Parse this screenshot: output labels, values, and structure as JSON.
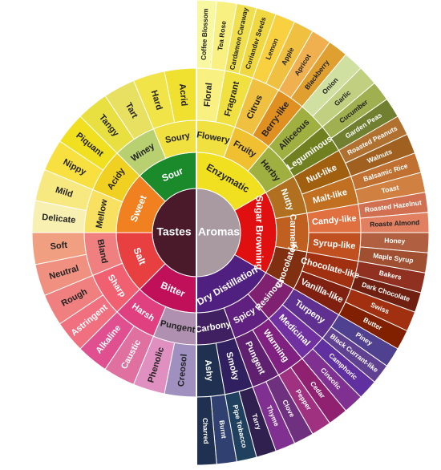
{
  "tastes": {
    "label": "Tastes",
    "color": "#4a1a2a",
    "children": [
      {
        "label": "Sour",
        "color": "#1a8a2a",
        "children": [
          {
            "label": "Soury",
            "color": "#f0e040",
            "children": [
              {
                "label": "Acrid",
                "color": "#f0e030"
              },
              {
                "label": "Hard",
                "color": "#f0e448"
              }
            ]
          },
          {
            "label": "Winey",
            "color": "#b8d070",
            "children": [
              {
                "label": "Tart",
                "color": "#e8e060"
              },
              {
                "label": "Tangy",
                "color": "#e8e040"
              }
            ]
          }
        ]
      },
      {
        "label": "Sweet",
        "color": "#f08020",
        "children": [
          {
            "label": "Acidy",
            "color": "#f0d020",
            "children": [
              {
                "label": "Piquant",
                "color": "#f0e020"
              },
              {
                "label": "Nippy",
                "color": "#f8e040"
              }
            ]
          },
          {
            "label": "Mellow",
            "color": "#f8e060",
            "children": [
              {
                "label": "Mild",
                "color": "#f8e880"
              },
              {
                "label": "Delicate",
                "color": "#f8f0b0"
              }
            ]
          }
        ]
      },
      {
        "label": "Salt",
        "color": "#e84040",
        "children": [
          {
            "label": "Bland",
            "color": "#f08080",
            "children": [
              {
                "label": "Soft",
                "color": "#f0a080"
              },
              {
                "label": "Neutral",
                "color": "#f09080"
              }
            ]
          },
          {
            "label": "Sharp",
            "color": "#f06070",
            "children": [
              {
                "label": "Rough",
                "color": "#f08080"
              },
              {
                "label": "Astringent",
                "color": "#f07080"
              }
            ]
          }
        ]
      },
      {
        "label": "Bitter",
        "color": "#c0105a",
        "children": [
          {
            "label": "Harsh",
            "color": "#e04080",
            "children": [
              {
                "label": "Alkaline",
                "color": "#e05090"
              },
              {
                "label": "Caustic",
                "color": "#e070a0"
              }
            ]
          },
          {
            "label": "Pungent",
            "color": "#b090b0",
            "children": [
              {
                "label": "Phenolic",
                "color": "#e090c0"
              },
              {
                "label": "Creosol",
                "color": "#a090c0"
              }
            ]
          }
        ]
      }
    ]
  },
  "aromas": {
    "label": "Aromas",
    "color": "#a89aa0",
    "children": [
      {
        "label": "Enzymatic",
        "color": "#f0e020",
        "children": [
          {
            "label": "Flowery",
            "color": "#f0e040",
            "children": [
              {
                "label": "Floral",
                "color": "#f8f080",
                "children": [
                  {
                    "label": "Coffee Blossom",
                    "color": "#f8f8a0"
                  },
                  {
                    "label": "Tea Rose",
                    "color": "#f8f080"
                  }
                ]
              },
              {
                "label": "Fragrant",
                "color": "#f0e040",
                "children": [
                  {
                    "label": "Cardamon Caraway",
                    "color": "#f0e050"
                  },
                  {
                    "label": "Coriander Seeds",
                    "color": "#f0d840"
                  }
                ]
              }
            ]
          },
          {
            "label": "Fruity",
            "color": "#f0c030",
            "children": [
              {
                "label": "Citrus",
                "color": "#f0c040",
                "children": [
                  {
                    "label": "Lemon",
                    "color": "#f8d040"
                  },
                  {
                    "label": "Apple",
                    "color": "#f0c040"
                  }
                ]
              },
              {
                "label": "Berry-like",
                "color": "#e09020",
                "children": [
                  {
                    "label": "Apricot",
                    "color": "#f0b050"
                  },
                  {
                    "label": "Blackberry",
                    "color": "#e0a030"
                  }
                ]
              }
            ]
          },
          {
            "label": "Herby",
            "color": "#a0b040",
            "children": [
              {
                "label": "Alliceous",
                "color": "#a0b040",
                "children": [
                  {
                    "label": "Onion",
                    "color": "#d0e0a0"
                  },
                  {
                    "label": "Garlic",
                    "color": "#c0d080"
                  }
                ]
              },
              {
                "label": "Leguminous",
                "color": "#708020",
                "children": [
                  {
                    "label": "Cucumber",
                    "color": "#a0b050"
                  },
                  {
                    "label": "Garden Peas",
                    "color": "#708030"
                  }
                ]
              }
            ]
          }
        ]
      },
      {
        "label": "Sugar Browning",
        "color": "#e01010",
        "children": [
          {
            "label": "Nutty",
            "color": "#b07020",
            "children": [
              {
                "label": "Nut-like",
                "color": "#a06010",
                "children": [
                  {
                    "label": "Roasted Peanuts",
                    "color": "#b07030"
                  },
                  {
                    "label": "Walnuts",
                    "color": "#a06020"
                  }
                ]
              },
              {
                "label": "Malt-like",
                "color": "#c07020",
                "children": [
                  {
                    "label": "Balsamic Rice",
                    "color": "#c07030"
                  },
                  {
                    "label": "Toast",
                    "color": "#d08040"
                  }
                ]
              }
            ]
          },
          {
            "label": "Carmelly",
            "color": "#c06020",
            "children": [
              {
                "label": "Candy-like",
                "color": "#e07040",
                "children": [
                  {
                    "label": "Roasted Hazelnut",
                    "color": "#d07050"
                  },
                  {
                    "label": "Roaste Almond",
                    "color": "#e08060"
                  }
                ]
              },
              {
                "label": "Syrup-like",
                "color": "#c05020",
                "children": [
                  {
                    "label": "Honey",
                    "color": "#b06040"
                  },
                  {
                    "label": "Maple Syrup",
                    "color": "#a05030"
                  }
                ]
              }
            ]
          },
          {
            "label": "Chocolatey",
            "color": "#803010",
            "children": [
              {
                "label": "Chocolate-like",
                "color": "#a03010",
                "children": [
                  {
                    "label": "Bakers",
                    "color": "#903020"
                  },
                  {
                    "label": "Dark Chocolate",
                    "color": "#702010"
                  }
                ]
              },
              {
                "label": "Vanilla-like",
                "color": "#802010",
                "children": [
                  {
                    "label": "Swiss",
                    "color": "#a03010"
                  },
                  {
                    "label": "Butter",
                    "color": "#802000"
                  }
                ]
              }
            ]
          }
        ]
      },
      {
        "label": "Dry Distillation",
        "color": "#502080",
        "children": [
          {
            "label": "Resinous",
            "color": "#802070",
            "children": [
              {
                "label": "Turpeny",
                "color": "#603090",
                "children": [
                  {
                    "label": "Piney",
                    "color": "#504090"
                  },
                  {
                    "label": "Black Currant-like",
                    "color": "#604090"
                  }
                ]
              },
              {
                "label": "Medicinal",
                "color": "#7030a0",
                "children": [
                  {
                    "label": "Camphoric",
                    "color": "#6030a0"
                  },
                  {
                    "label": "Cineolic",
                    "color": "#803090"
                  }
                ]
              }
            ]
          },
          {
            "label": "Spicy",
            "color": "#602080",
            "children": [
              {
                "label": "Warming",
                "color": "#802080",
                "children": [
                  {
                    "label": "Cedar",
                    "color": "#902070"
                  },
                  {
                    "label": "Pepper",
                    "color": "#a03080"
                  }
                ]
              },
              {
                "label": "Pungent",
                "color": "#602070",
                "children": [
                  {
                    "label": "Clove",
                    "color": "#703080"
                  },
                  {
                    "label": "Thyme",
                    "color": "#803090"
                  }
                ]
              }
            ]
          },
          {
            "label": "Carbony",
            "color": "#402060",
            "children": [
              {
                "label": "Smoky",
                "color": "#302060",
                "children": [
                  {
                    "label": "Tarry",
                    "color": "#302050"
                  },
                  {
                    "label": "Pipe Tobacco",
                    "color": "#204060"
                  }
                ]
              },
              {
                "label": "Ashy",
                "color": "#203050",
                "children": [
                  {
                    "label": "Burnt",
                    "color": "#304070"
                  },
                  {
                    "label": "Charred",
                    "color": "#203050"
                  }
                ]
              }
            ]
          }
        ]
      }
    ]
  }
}
